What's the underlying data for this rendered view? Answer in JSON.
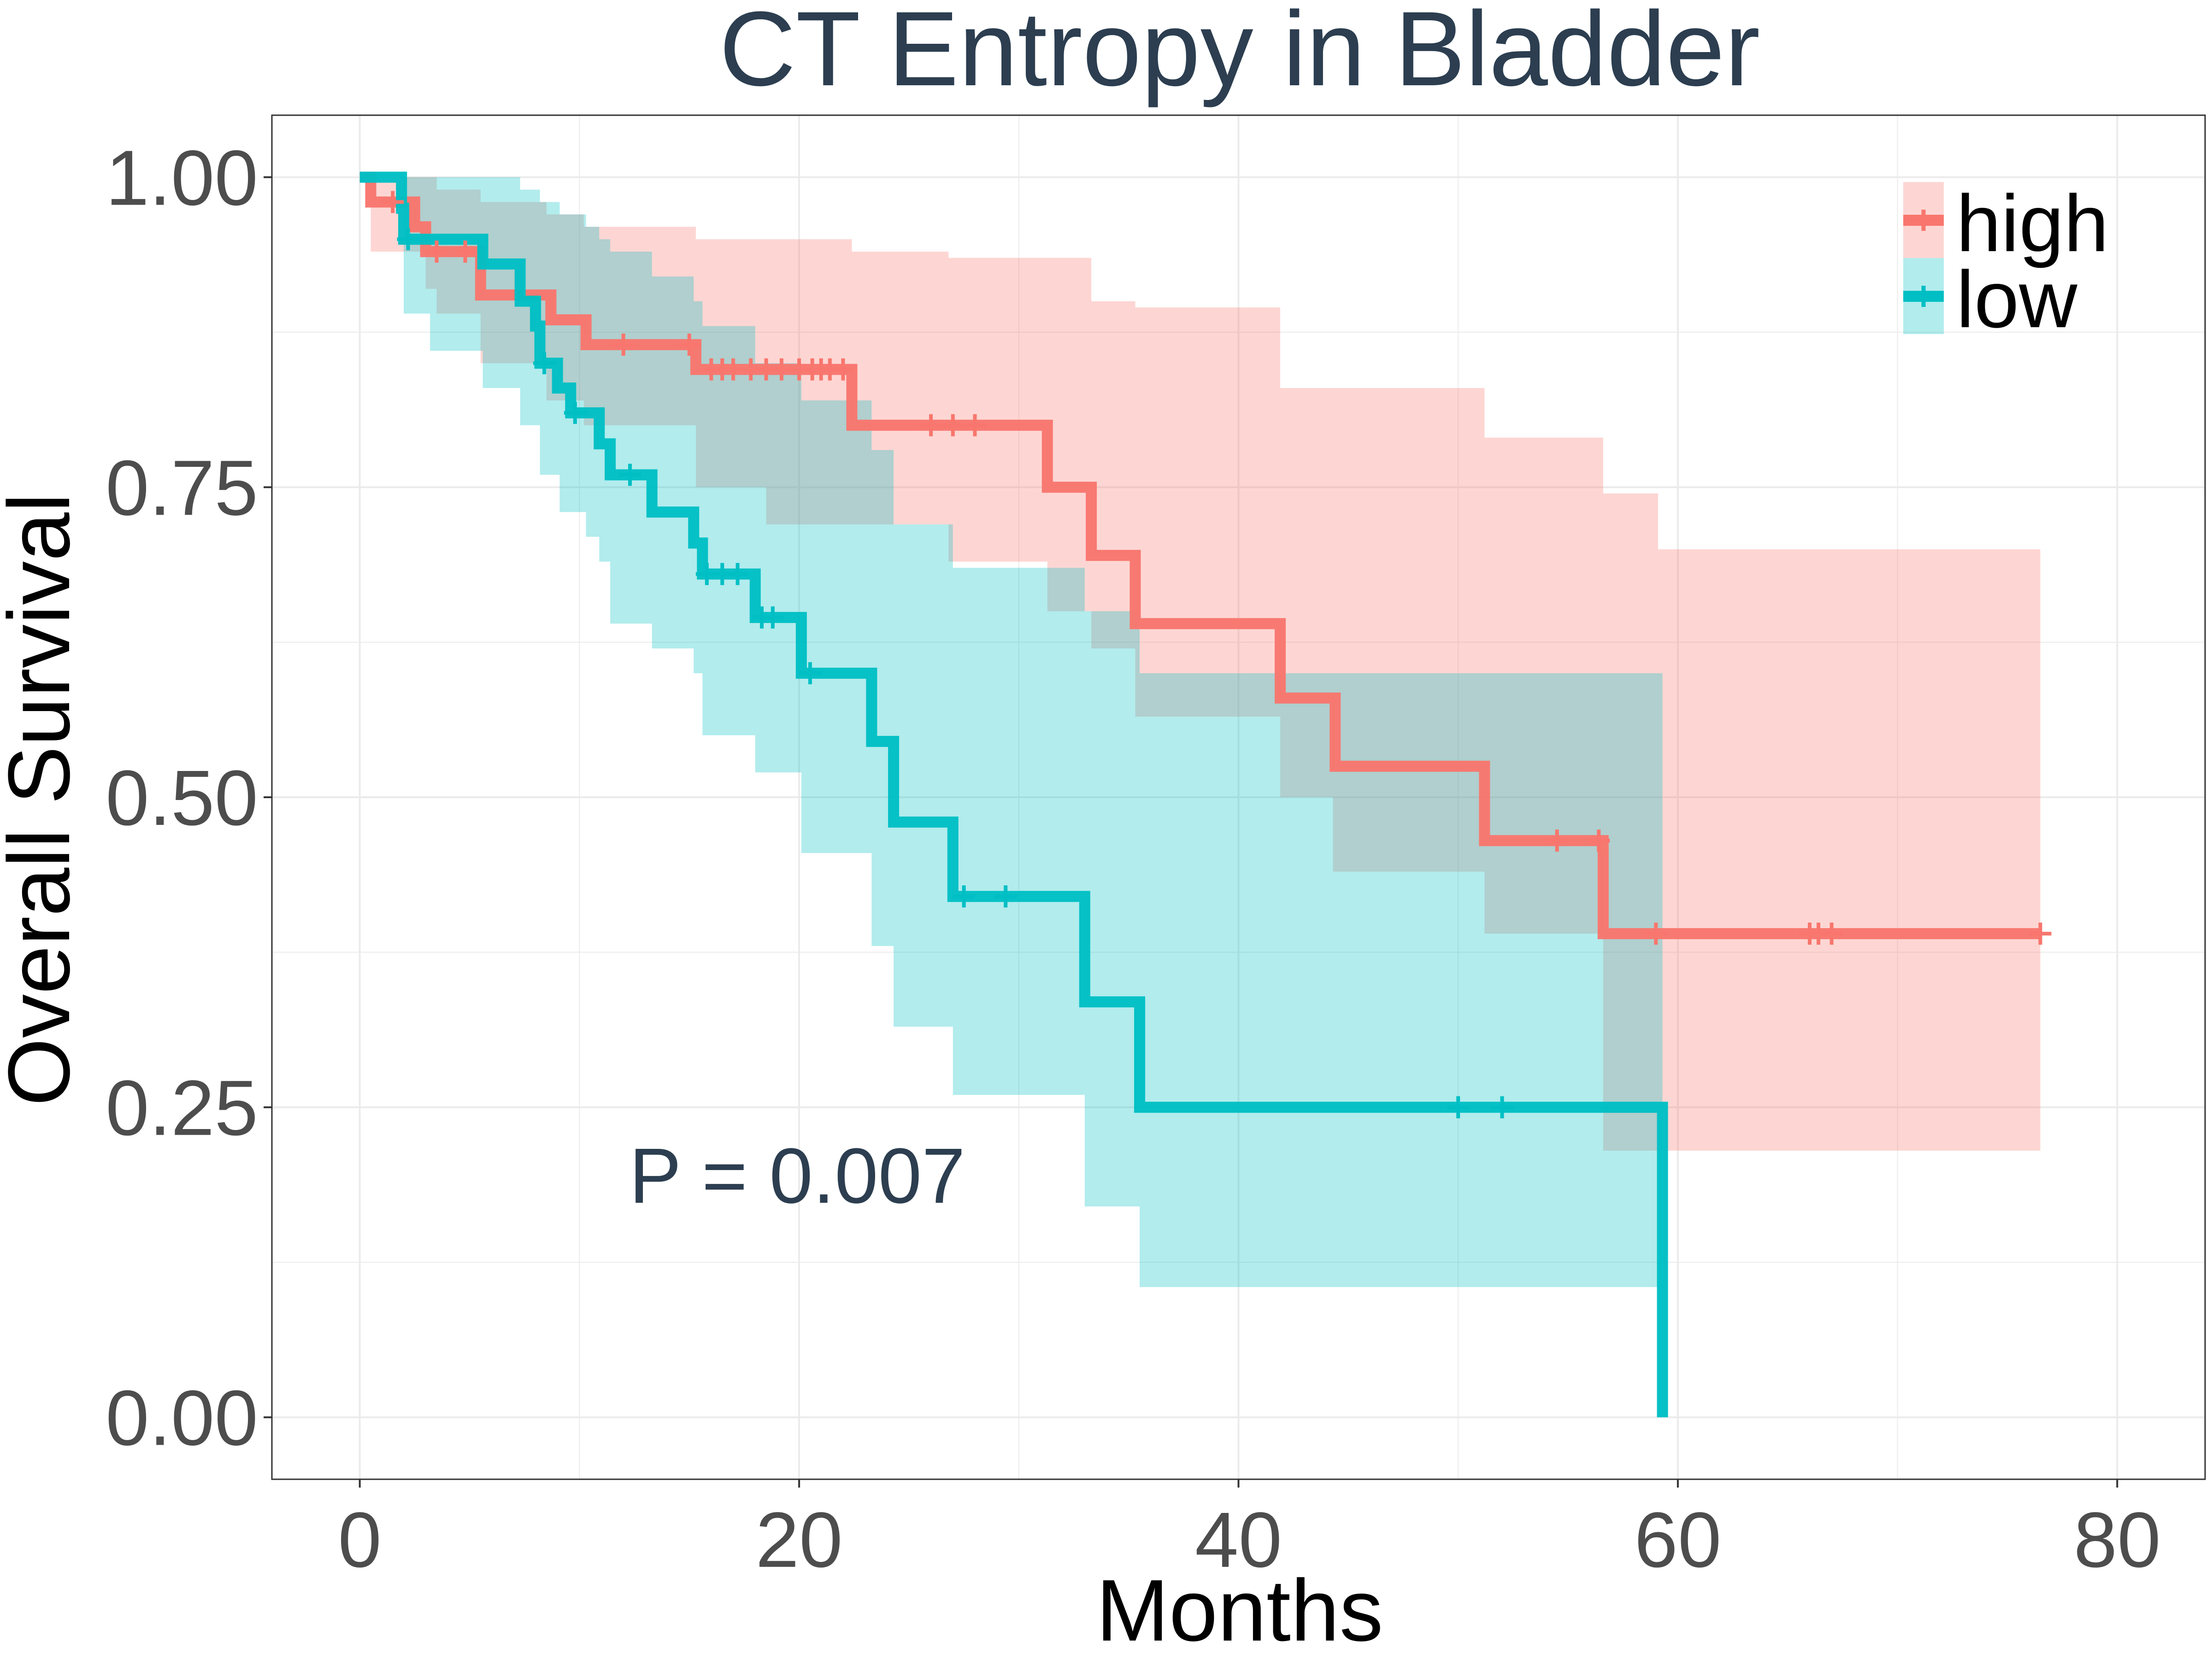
{
  "chart_data": {
    "type": "line",
    "subtype": "kaplan-meier",
    "title": "CT Entropy in Bladder",
    "xlabel": "Months",
    "ylabel": "Overall Survival",
    "xlim": [
      -4,
      84
    ],
    "ylim": [
      -0.05,
      1.05
    ],
    "x_ticks": [
      0,
      20,
      40,
      60,
      80
    ],
    "x_tick_labels": [
      "0",
      "20",
      "40",
      "60",
      "80"
    ],
    "y_ticks": [
      0,
      0.25,
      0.5,
      0.75,
      1.0
    ],
    "y_tick_labels": [
      "0.00",
      "0.25",
      "0.50",
      "0.75",
      "1.00"
    ],
    "grid": true,
    "legend_position": "top-right",
    "annotation": "P = 0.007",
    "colors": {
      "high": "#F8766D",
      "low": "#00BFC4",
      "title": "#2C3E50",
      "annotation": "#2C3E50",
      "tick_label": "#4D4D4D",
      "axis_label": "#000000",
      "grid": "#EBEBEB",
      "panel_border": "#333333"
    },
    "series": [
      {
        "name": "high",
        "color": "#F8766D",
        "steps": [
          [
            0,
            1.0
          ],
          [
            0.5,
            0.98
          ],
          [
            2,
            0.98
          ],
          [
            2.5,
            0.96
          ],
          [
            3,
            0.94
          ],
          [
            5,
            0.94
          ],
          [
            5.5,
            0.905
          ],
          [
            8.5,
            0.905
          ],
          [
            8.7,
            0.885
          ],
          [
            10.2,
            0.885
          ],
          [
            10.3,
            0.865
          ],
          [
            15.2,
            0.865
          ],
          [
            15.3,
            0.845
          ],
          [
            22.3,
            0.845
          ],
          [
            22.4,
            0.8
          ],
          [
            31.2,
            0.8
          ],
          [
            31.3,
            0.75
          ],
          [
            33.2,
            0.75
          ],
          [
            33.3,
            0.695
          ],
          [
            35.2,
            0.695
          ],
          [
            35.3,
            0.64
          ],
          [
            41.8,
            0.64
          ],
          [
            41.9,
            0.58
          ],
          [
            44.3,
            0.58
          ],
          [
            44.4,
            0.525
          ],
          [
            51.1,
            0.525
          ],
          [
            51.2,
            0.465
          ],
          [
            56.5,
            0.465
          ],
          [
            56.6,
            0.39
          ],
          [
            76.5,
            0.39
          ]
        ],
        "ci_band": [
          [
            0,
            1.0,
            1.0
          ],
          [
            0.5,
            0.94,
            1.0
          ],
          [
            3,
            0.91,
            1.0
          ],
          [
            3.5,
            0.89,
            0.99
          ],
          [
            5.5,
            0.85,
            0.98
          ],
          [
            8.5,
            0.82,
            0.97
          ],
          [
            10.2,
            0.8,
            0.96
          ],
          [
            15.3,
            0.75,
            0.95
          ],
          [
            18.5,
            0.72,
            0.95
          ],
          [
            22.4,
            0.72,
            0.94
          ],
          [
            26.8,
            0.69,
            0.935
          ],
          [
            31.3,
            0.65,
            0.935
          ],
          [
            33.3,
            0.62,
            0.9
          ],
          [
            35.3,
            0.565,
            0.895
          ],
          [
            41.9,
            0.5,
            0.83
          ],
          [
            44.3,
            0.44,
            0.83
          ],
          [
            51.2,
            0.39,
            0.79
          ],
          [
            56.6,
            0.215,
            0.745
          ],
          [
            59.1,
            0.215,
            0.7
          ],
          [
            76.5,
            0.215,
            0.7
          ]
        ],
        "censored_x": [
          1.5,
          3.5,
          4.8,
          12,
          15,
          16,
          16.5,
          17,
          17.8,
          18.5,
          19.2,
          20,
          20.6,
          21,
          21.4,
          22,
          26,
          27,
          28,
          54.5,
          56.4,
          59,
          66,
          66.4,
          67,
          76.5
        ]
      },
      {
        "name": "low",
        "color": "#00BFC4",
        "steps": [
          [
            0,
            1.0
          ],
          [
            1.8,
            1.0
          ],
          [
            1.9,
            0.975
          ],
          [
            2.0,
            0.95
          ],
          [
            5.5,
            0.95
          ],
          [
            5.6,
            0.93
          ],
          [
            7.2,
            0.93
          ],
          [
            7.3,
            0.9
          ],
          [
            7.9,
            0.9
          ],
          [
            8.0,
            0.88
          ],
          [
            8.2,
            0.85
          ],
          [
            8.9,
            0.85
          ],
          [
            9.0,
            0.83
          ],
          [
            9.5,
            0.83
          ],
          [
            9.6,
            0.81
          ],
          [
            10.8,
            0.81
          ],
          [
            10.9,
            0.785
          ],
          [
            11.3,
            0.785
          ],
          [
            11.4,
            0.76
          ],
          [
            13.2,
            0.76
          ],
          [
            13.3,
            0.73
          ],
          [
            15.1,
            0.73
          ],
          [
            15.2,
            0.705
          ],
          [
            15.5,
            0.705
          ],
          [
            15.6,
            0.68
          ],
          [
            17.9,
            0.68
          ],
          [
            18.0,
            0.645
          ],
          [
            20.0,
            0.645
          ],
          [
            20.1,
            0.6
          ],
          [
            23.2,
            0.6
          ],
          [
            23.3,
            0.545
          ],
          [
            24.2,
            0.545
          ],
          [
            24.3,
            0.48
          ],
          [
            26.9,
            0.48
          ],
          [
            27.0,
            0.42
          ],
          [
            32.9,
            0.42
          ],
          [
            33.0,
            0.335
          ],
          [
            35.4,
            0.335
          ],
          [
            35.5,
            0.25
          ],
          [
            59.2,
            0.25
          ],
          [
            59.3,
            0.0
          ]
        ],
        "ci_band": [
          [
            0,
            1.0,
            1.0
          ],
          [
            2,
            0.89,
            1.0
          ],
          [
            3.2,
            0.86,
            1.0
          ],
          [
            5.6,
            0.83,
            1.0
          ],
          [
            7.3,
            0.8,
            0.99
          ],
          [
            8.2,
            0.76,
            0.98
          ],
          [
            9.1,
            0.73,
            0.97
          ],
          [
            10.3,
            0.71,
            0.96
          ],
          [
            10.9,
            0.69,
            0.95
          ],
          [
            11.4,
            0.64,
            0.94
          ],
          [
            13.3,
            0.62,
            0.92
          ],
          [
            15.2,
            0.6,
            0.9
          ],
          [
            15.6,
            0.55,
            0.88
          ],
          [
            18.0,
            0.52,
            0.85
          ],
          [
            20.1,
            0.455,
            0.82
          ],
          [
            23.3,
            0.38,
            0.78
          ],
          [
            24.3,
            0.315,
            0.72
          ],
          [
            27.0,
            0.26,
            0.685
          ],
          [
            33.0,
            0.17,
            0.65
          ],
          [
            35.5,
            0.105,
            0.6
          ],
          [
            59.3,
            0.105,
            0.6
          ]
        ],
        "censored_x": [
          2.2,
          8.4,
          9.8,
          12.3,
          15.8,
          16.5,
          17.2,
          18.3,
          18.8,
          20.5,
          27.5,
          29.4,
          50,
          52
        ]
      }
    ]
  }
}
